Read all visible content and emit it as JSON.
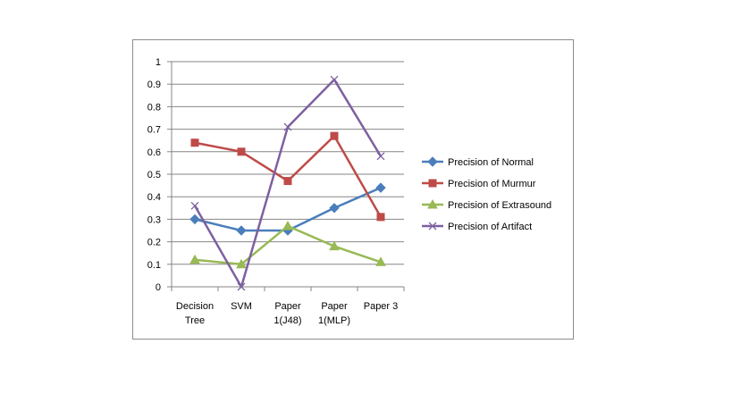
{
  "chart_data": {
    "type": "line",
    "title": "",
    "xlabel": "",
    "ylabel": "",
    "ylim": [
      0,
      1
    ],
    "yticks": [
      "0",
      "0.1",
      "0.2",
      "0.3",
      "0.4",
      "0.5",
      "0.6",
      "0.7",
      "0.8",
      "0.9",
      "1"
    ],
    "categories": [
      [
        "Decision",
        "Tree"
      ],
      [
        "SVM"
      ],
      [
        "Paper",
        "1(J48)"
      ],
      [
        "Paper",
        "1(MLP)"
      ],
      [
        "Paper 3"
      ]
    ],
    "grid": "horizontal",
    "legend_position": "right",
    "series": [
      {
        "name": "Precision of Normal",
        "color": "#4a7ebb",
        "marker": "diamond",
        "values": [
          0.3,
          0.25,
          0.25,
          0.35,
          0.44
        ]
      },
      {
        "name": "Precision of Murmur",
        "color": "#be4b48",
        "marker": "square",
        "values": [
          0.64,
          0.6,
          0.47,
          0.67,
          0.31
        ]
      },
      {
        "name": "Precision of Extrasound",
        "color": "#98b954",
        "marker": "triangle",
        "values": [
          0.12,
          0.1,
          0.27,
          0.18,
          0.11
        ]
      },
      {
        "name": "Precision of Artifact",
        "color": "#7d60a0",
        "marker": "x",
        "values": [
          0.36,
          0.0,
          0.71,
          0.92,
          0.58
        ]
      }
    ]
  }
}
